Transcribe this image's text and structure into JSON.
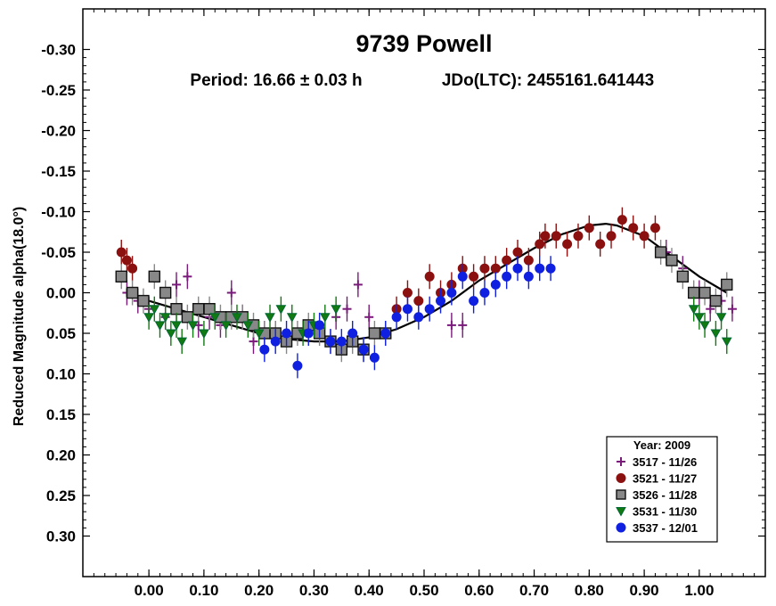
{
  "chart_data": {
    "type": "scatter",
    "title": "9739 Powell",
    "subtitle_period": "Period: 16.66 ± 0.03 h",
    "subtitle_epoch": "JDo(LTC): 2455161.641443",
    "ylabel": "Reduced Magnitude alpha(18.0°)",
    "xlabel": "",
    "xlim": [
      -0.12,
      1.12
    ],
    "ylim": [
      0.35,
      -0.35
    ],
    "y_inverted": true,
    "xticks": [
      0.0,
      0.1,
      0.2,
      0.3,
      0.4,
      0.5,
      0.6,
      0.7,
      0.8,
      0.9,
      1.0
    ],
    "xtick_labels": [
      "0.00",
      "0.10",
      "0.20",
      "0.30",
      "0.40",
      "0.50",
      "0.60",
      "0.70",
      "0.80",
      "0.90",
      "1.00"
    ],
    "yticks": [
      -0.3,
      -0.25,
      -0.2,
      -0.15,
      -0.1,
      -0.05,
      0.0,
      0.05,
      0.1,
      0.15,
      0.2,
      0.25,
      0.3
    ],
    "ytick_labels": [
      "-0.30",
      "-0.25",
      "-0.20",
      "-0.15",
      "-0.10",
      "-0.05",
      "0.00",
      "0.05",
      "0.10",
      "0.15",
      "0.20",
      "0.25",
      "0.30"
    ],
    "grid": false,
    "legend_title": "Year: 2009",
    "legend_position": "bottom-right",
    "fit_curve": {
      "description_visible": false,
      "x": [
        0.0,
        0.05,
        0.1,
        0.15,
        0.2,
        0.25,
        0.3,
        0.35,
        0.4,
        0.45,
        0.5,
        0.55,
        0.6,
        0.65,
        0.7,
        0.75,
        0.8,
        0.83,
        0.85,
        0.9,
        0.95,
        1.0,
        1.05
      ],
      "y": [
        0.01,
        0.02,
        0.03,
        0.04,
        0.05,
        0.057,
        0.06,
        0.06,
        0.055,
        0.045,
        0.03,
        0.01,
        -0.015,
        -0.035,
        -0.055,
        -0.072,
        -0.083,
        -0.085,
        -0.083,
        -0.07,
        -0.045,
        -0.02,
        0.0
      ]
    },
    "series": [
      {
        "name": "3517 - 11/26",
        "marker": "plus",
        "color": "#7a1a7a",
        "x": [
          -0.04,
          -0.02,
          0.0,
          0.03,
          0.05,
          0.07,
          0.09,
          0.11,
          0.13,
          0.15,
          0.17,
          0.19,
          0.21,
          0.23,
          0.34,
          0.36,
          0.38,
          0.4,
          0.55,
          0.57,
          0.94,
          0.97,
          1.0,
          1.02,
          1.04,
          1.06
        ],
        "y": [
          0.0,
          0.01,
          0.02,
          0.03,
          -0.01,
          -0.02,
          0.04,
          0.03,
          0.04,
          0.0,
          0.03,
          0.06,
          0.05,
          0.05,
          0.03,
          0.02,
          -0.01,
          0.03,
          0.04,
          0.04,
          -0.05,
          -0.03,
          0.0,
          0.02,
          0.01,
          0.02
        ]
      },
      {
        "name": "3521 - 11/27",
        "marker": "circle",
        "color": "#8b1010",
        "x": [
          -0.05,
          -0.04,
          -0.03,
          0.45,
          0.47,
          0.49,
          0.51,
          0.53,
          0.55,
          0.57,
          0.59,
          0.61,
          0.63,
          0.65,
          0.67,
          0.69,
          0.71,
          0.72,
          0.74,
          0.76,
          0.78,
          0.8,
          0.82,
          0.84,
          0.86,
          0.88,
          0.9,
          0.92
        ],
        "y": [
          -0.05,
          -0.04,
          -0.03,
          0.02,
          0.0,
          0.01,
          -0.02,
          0.0,
          -0.01,
          -0.03,
          -0.02,
          -0.03,
          -0.03,
          -0.04,
          -0.05,
          -0.04,
          -0.06,
          -0.07,
          -0.07,
          -0.06,
          -0.07,
          -0.08,
          -0.06,
          -0.07,
          -0.09,
          -0.08,
          -0.07,
          -0.08
        ]
      },
      {
        "name": "3526 - 11/28",
        "marker": "square",
        "color": "#888888",
        "x": [
          -0.05,
          -0.03,
          -0.01,
          0.01,
          0.03,
          0.05,
          0.07,
          0.09,
          0.11,
          0.13,
          0.15,
          0.17,
          0.19,
          0.21,
          0.23,
          0.25,
          0.27,
          0.29,
          0.31,
          0.33,
          0.35,
          0.37,
          0.39,
          0.41,
          0.43,
          0.93,
          0.95,
          0.97,
          0.99,
          1.01,
          1.03,
          1.05
        ],
        "y": [
          -0.02,
          0.0,
          0.01,
          -0.02,
          0.0,
          0.02,
          0.03,
          0.02,
          0.02,
          0.03,
          0.03,
          0.03,
          0.04,
          0.05,
          0.05,
          0.06,
          0.05,
          0.04,
          0.05,
          0.06,
          0.07,
          0.06,
          0.07,
          0.05,
          0.05,
          -0.05,
          -0.04,
          -0.02,
          0.0,
          0.0,
          0.01,
          -0.01
        ]
      },
      {
        "name": "3531 - 11/30",
        "marker": "triangle-down",
        "color": "#117a11",
        "x": [
          0.0,
          0.01,
          0.02,
          0.03,
          0.04,
          0.05,
          0.06,
          0.08,
          0.1,
          0.12,
          0.14,
          0.16,
          0.18,
          0.2,
          0.22,
          0.24,
          0.26,
          0.28,
          0.3,
          0.32,
          0.34,
          0.99,
          1.0,
          1.01,
          1.03,
          1.04,
          1.05
        ],
        "y": [
          0.03,
          0.02,
          0.04,
          0.03,
          0.05,
          0.04,
          0.06,
          0.04,
          0.05,
          0.03,
          0.04,
          0.03,
          0.04,
          0.05,
          0.03,
          0.02,
          0.03,
          0.05,
          0.04,
          0.03,
          0.02,
          0.02,
          0.03,
          0.04,
          0.05,
          0.03,
          0.06
        ]
      },
      {
        "name": "3537 - 12/01",
        "marker": "circle",
        "color": "#1020e0",
        "x": [
          0.21,
          0.23,
          0.25,
          0.27,
          0.29,
          0.31,
          0.33,
          0.35,
          0.37,
          0.39,
          0.41,
          0.43,
          0.45,
          0.47,
          0.49,
          0.51,
          0.53,
          0.55,
          0.57,
          0.59,
          0.61,
          0.63,
          0.65,
          0.67,
          0.69,
          0.71,
          0.73
        ],
        "y": [
          0.07,
          0.06,
          0.05,
          0.09,
          0.05,
          0.04,
          0.06,
          0.06,
          0.05,
          0.07,
          0.08,
          0.05,
          0.03,
          0.02,
          0.03,
          0.02,
          0.01,
          0.0,
          -0.02,
          0.01,
          0.0,
          -0.01,
          -0.02,
          -0.03,
          -0.02,
          -0.03,
          -0.03
        ]
      }
    ]
  }
}
